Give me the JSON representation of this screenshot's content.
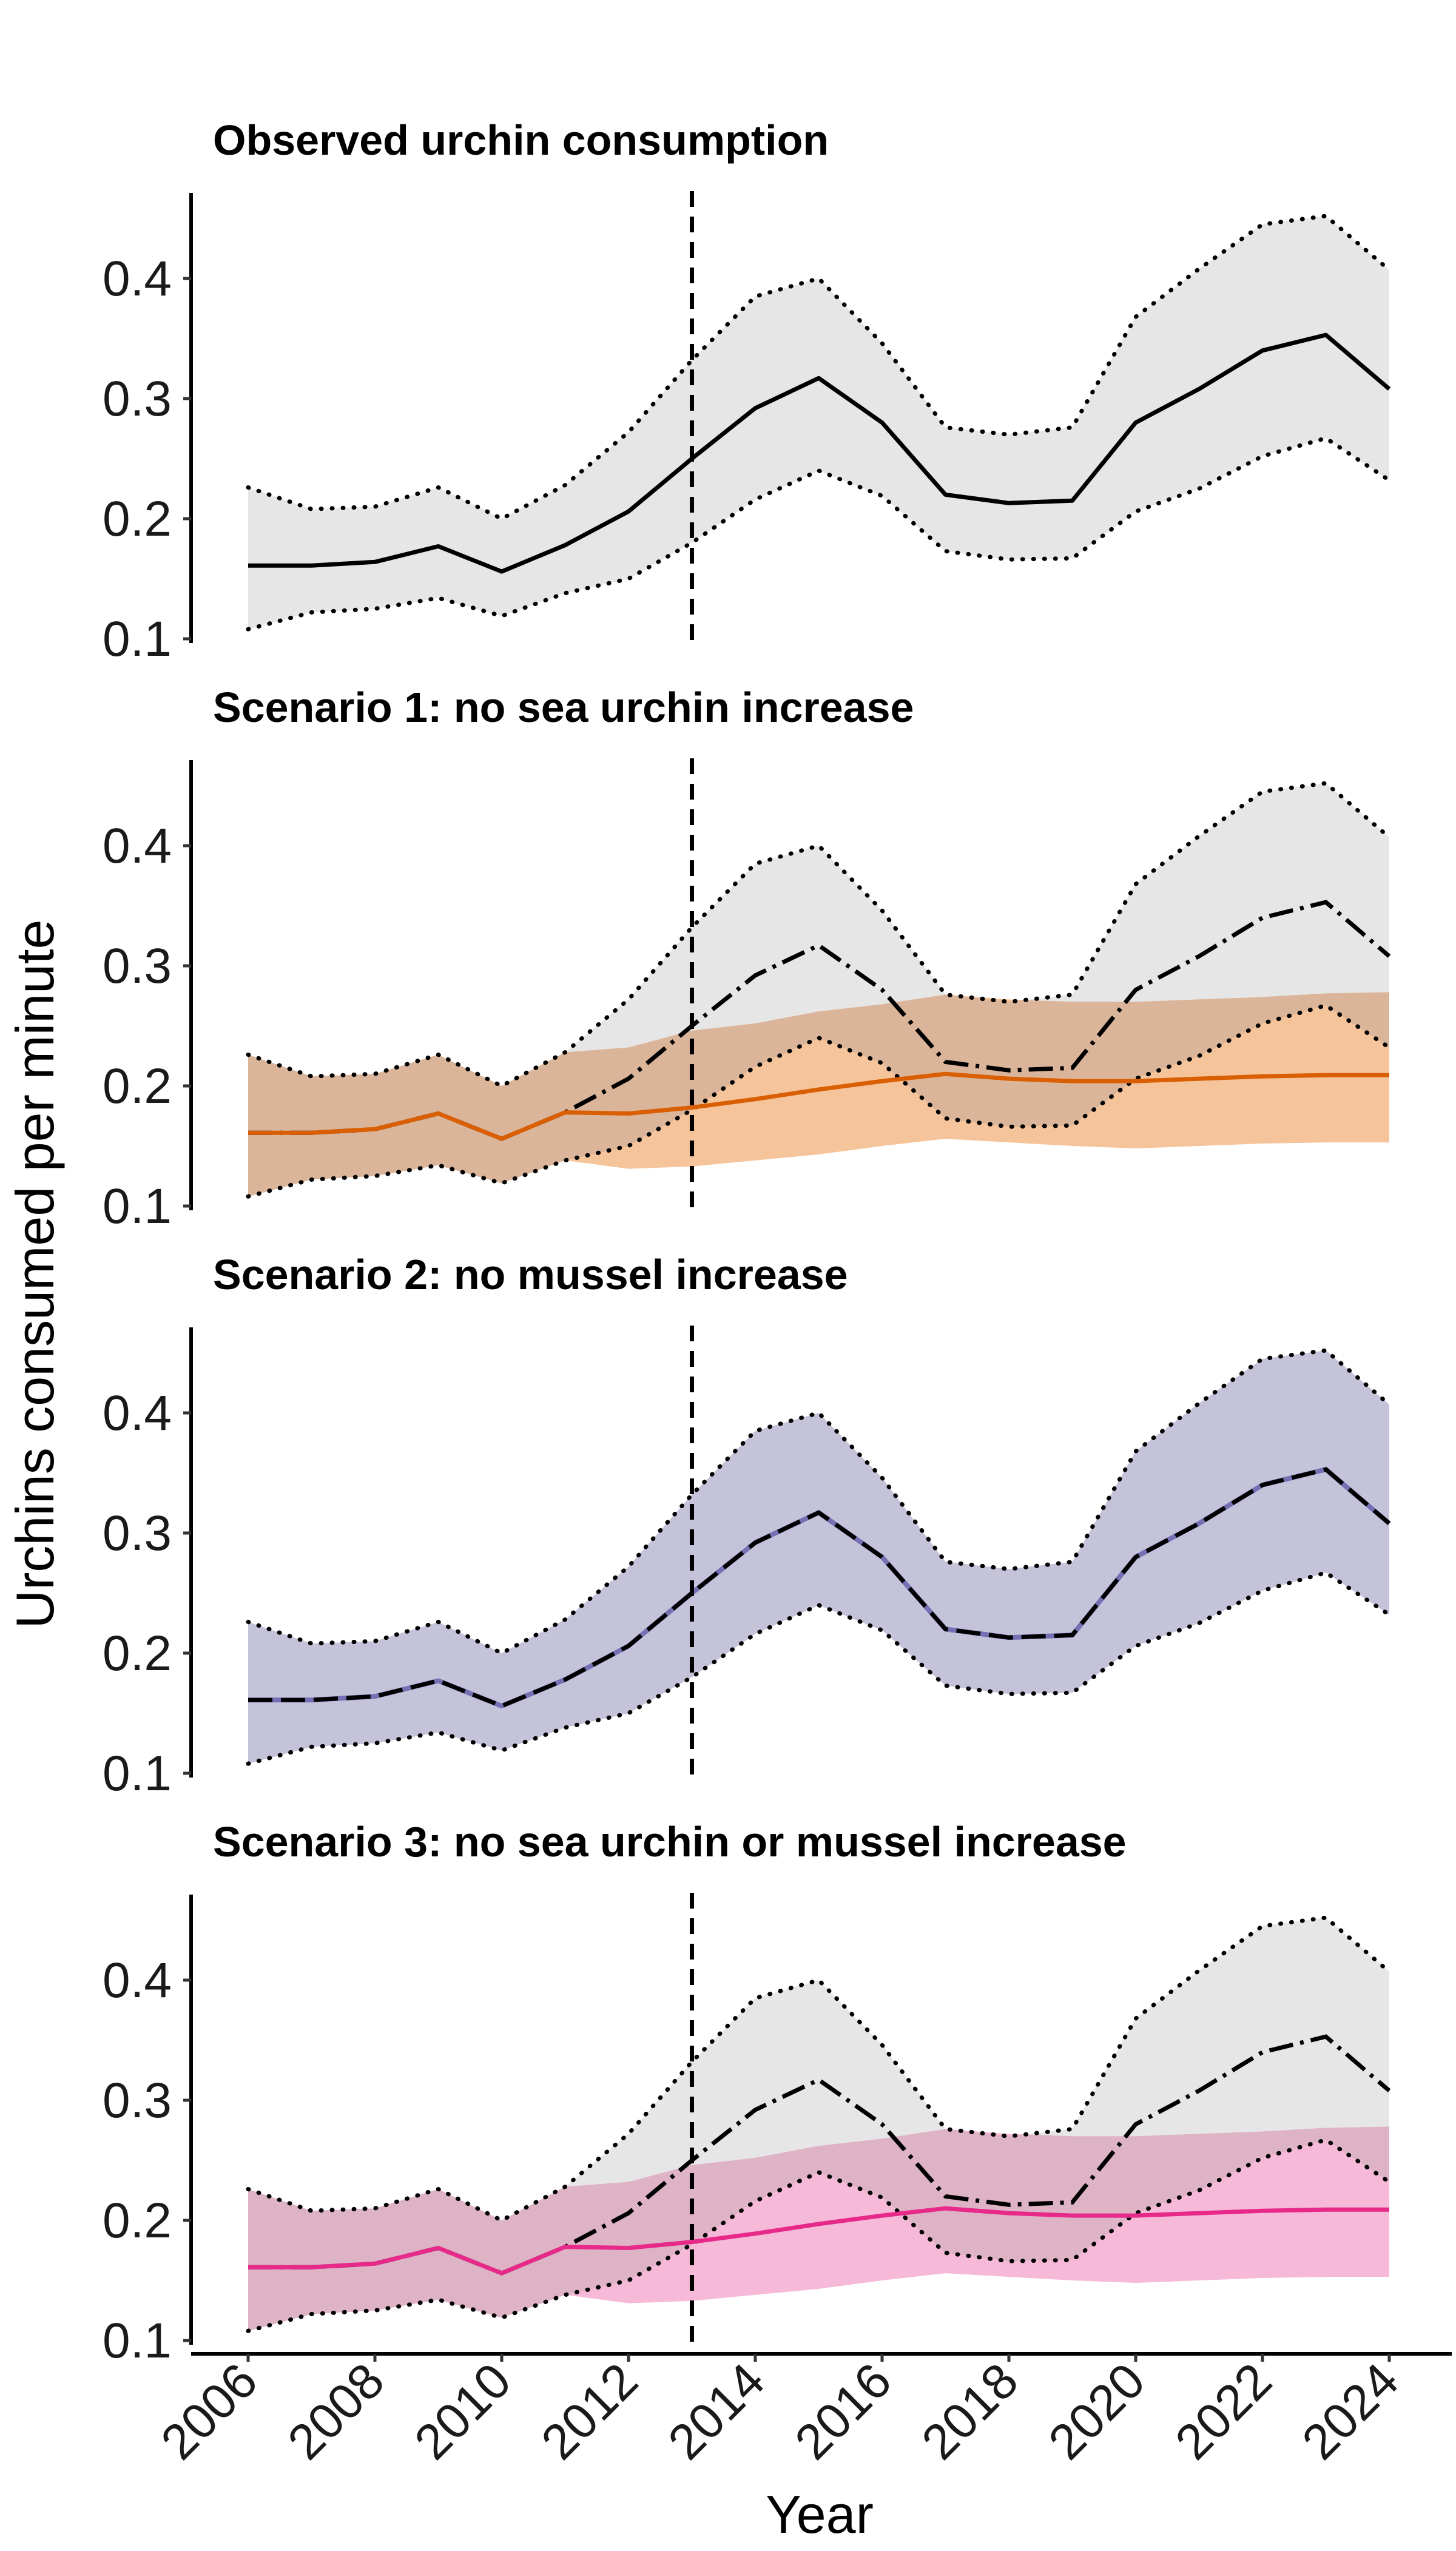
{
  "chart_data": {
    "type": "line",
    "ylabel": "Urchins consumed per minute",
    "xlabel": "Year",
    "xlim": [
      2006,
      2024
    ],
    "ylim": [
      0.1,
      0.45
    ],
    "x_ticks": [
      "2006",
      "2008",
      "2010",
      "2012",
      "2014",
      "2016",
      "2018",
      "2020",
      "2022",
      "2024"
    ],
    "y_ticks": [
      "0.1",
      "0.2",
      "0.3",
      "0.4"
    ],
    "reference_line_x": 2013,
    "x": [
      2006,
      2007,
      2008,
      2009,
      2010,
      2011,
      2012,
      2013,
      2014,
      2015,
      2016,
      2017,
      2018,
      2019,
      2020,
      2021,
      2022,
      2023,
      2024
    ],
    "observed": {
      "mean": [
        0.161,
        0.161,
        0.164,
        0.177,
        0.156,
        0.178,
        0.206,
        0.25,
        0.292,
        0.317,
        0.28,
        0.22,
        0.213,
        0.215,
        0.28,
        0.308,
        0.34,
        0.353,
        0.308
      ],
      "lower": [
        0.108,
        0.122,
        0.125,
        0.134,
        0.119,
        0.138,
        0.15,
        0.18,
        0.216,
        0.24,
        0.219,
        0.173,
        0.166,
        0.167,
        0.206,
        0.225,
        0.252,
        0.267,
        0.232
      ],
      "upper": [
        0.226,
        0.208,
        0.21,
        0.226,
        0.2,
        0.228,
        0.272,
        0.332,
        0.385,
        0.4,
        0.346,
        0.276,
        0.27,
        0.276,
        0.368,
        0.408,
        0.445,
        0.452,
        0.407
      ],
      "color": "#000000",
      "fill": "#e6e6e6"
    },
    "scenario_A": {
      "mean": [
        0.161,
        0.161,
        0.164,
        0.177,
        0.156,
        0.178,
        0.177,
        0.182,
        0.189,
        0.197,
        0.204,
        0.21,
        0.206,
        0.204,
        0.204,
        0.206,
        0.208,
        0.209,
        0.209
      ],
      "lower": [
        0.108,
        0.122,
        0.125,
        0.134,
        0.119,
        0.138,
        0.131,
        0.133,
        0.138,
        0.143,
        0.15,
        0.156,
        0.153,
        0.15,
        0.148,
        0.15,
        0.152,
        0.153,
        0.153
      ],
      "upper": [
        0.226,
        0.208,
        0.21,
        0.226,
        0.2,
        0.228,
        0.232,
        0.246,
        0.252,
        0.262,
        0.268,
        0.276,
        0.272,
        0.27,
        0.27,
        0.272,
        0.274,
        0.277,
        0.278
      ]
    },
    "panels": [
      {
        "title": "Observed urchin consumption",
        "mode": "observed",
        "color": "#000000",
        "fill": "#e6e6e6"
      },
      {
        "title": "Scenario 1: no sea urchin increase",
        "mode": "scenarioA",
        "color": "#d95f02",
        "fill": "#f5c49b",
        "overlap": "#dbb59a"
      },
      {
        "title": "Scenario 2: no mussel increase",
        "mode": "scenarioB",
        "color": "#7570b3",
        "fill": "#c5c3da"
      },
      {
        "title": "Scenario 3: no sea urchin or mussel increase",
        "mode": "scenarioA",
        "color": "#e7298a",
        "fill": "#f6b9d8",
        "overlap": "#deb3c5"
      }
    ]
  }
}
